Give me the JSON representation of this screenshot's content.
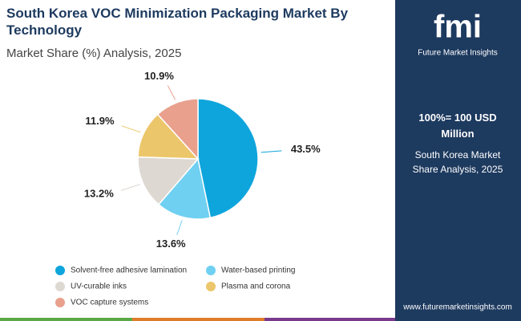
{
  "chart_data": {
    "type": "pie",
    "title": "South Korea VOC Minimization Packaging Market By Technology",
    "subtitle": "Market Share (%) Analysis, 2025",
    "categories": [
      "Solvent-free adhesive lamination",
      "Water-based printing",
      "UV-curable inks",
      "Plasma and corona",
      "VOC capture systems"
    ],
    "values": [
      43.5,
      13.6,
      13.2,
      11.9,
      10.9
    ],
    "value_labels": [
      "43.5%",
      "13.6%",
      "13.2%",
      "11.9%",
      "10.9%"
    ],
    "colors": [
      "#0ea5dc",
      "#6fd0f2",
      "#ddd8d2",
      "#ecc66a",
      "#e9a08d"
    ]
  },
  "side_panel": {
    "logo": "fmi",
    "brand": "Future Market Insights",
    "headline": "100%= 100 USD Million",
    "note": "South Korea Market Share Analysis, 2025",
    "url": "www.futuremarketinsights.com"
  }
}
